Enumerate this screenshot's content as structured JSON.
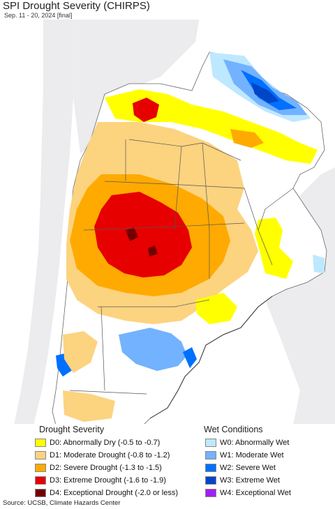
{
  "header": {
    "title": "SPI Drought Severity (CHIRPS)",
    "subtitle": "Sep. 11 - 20, 2024 [final]"
  },
  "colors": {
    "ocean": "#ffffff",
    "land_outside": "#ecebee",
    "land_normal": "#ffffff",
    "border": "#555555"
  },
  "legend": {
    "drought": {
      "heading": "Drought Severity",
      "items": [
        {
          "label": "D0: Abnormally Dry (-0.5 to -0.7)",
          "color": "#ffff00"
        },
        {
          "label": "D1: Moderate Drought (-0.8 to -1.2)",
          "color": "#fcd37f"
        },
        {
          "label": "D2: Severe Drought (-1.3 to -1.5)",
          "color": "#ffaa00"
        },
        {
          "label": "D3: Extreme Drought (-1.6 to -1.9)",
          "color": "#e60000"
        },
        {
          "label": "D4: Exceptional Drought (-2.0 or less)",
          "color": "#730000"
        }
      ]
    },
    "wet": {
      "heading": "Wet Conditions",
      "items": [
        {
          "label": "W0: Abnormally Wet",
          "color": "#bee8ff"
        },
        {
          "label": "W1: Moderate Wet",
          "color": "#73b2ff"
        },
        {
          "label": "W2: Severe Wet",
          "color": "#0070ff"
        },
        {
          "label": "W3: Extreme Wet",
          "color": "#0046c8"
        },
        {
          "label": "W4: Exceptional Wet",
          "color": "#a020f0"
        }
      ]
    }
  },
  "footer": {
    "source": "Source: UCSB, Climate Hazards Center"
  }
}
